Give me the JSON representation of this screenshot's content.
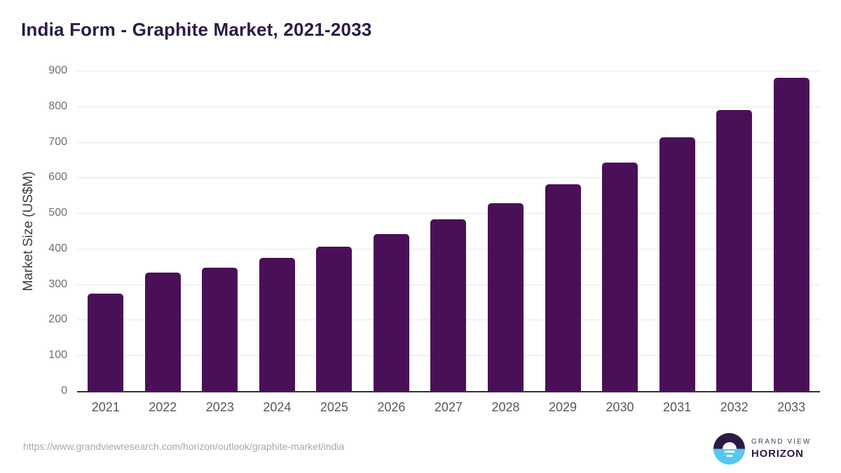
{
  "title": "India Form - Graphite Market, 2021-2033",
  "source_url": "https://www.grandviewresearch.com/horizon/outlook/graphite-market/india",
  "logo": {
    "line1": "GRAND VIEW",
    "line2": "HORIZON",
    "mark": "sunrise-horizon-circle-icon"
  },
  "colors": {
    "bar": "#4A1057",
    "title": "#2D1B45",
    "grid": "#E8E8E8",
    "axis": "#303034",
    "tick": "#6E6E6E",
    "url": "#A8A8A8",
    "logo_top": "#2D1B45",
    "logo_bottom": "#57C7F2"
  },
  "chart_data": {
    "type": "bar",
    "title": "India Form - Graphite Market, 2021-2033",
    "categories": [
      "2021",
      "2022",
      "2023",
      "2024",
      "2025",
      "2026",
      "2027",
      "2028",
      "2029",
      "2030",
      "2031",
      "2032",
      "2033"
    ],
    "values": [
      273,
      333,
      347,
      374,
      405,
      441,
      483,
      527,
      581,
      642,
      712,
      790,
      881
    ],
    "xlabel": "",
    "ylabel": "Market Size (US$M)",
    "ylim": [
      0,
      900
    ],
    "yticks": [
      0,
      100,
      200,
      300,
      400,
      500,
      600,
      700,
      800,
      900
    ],
    "grid": true,
    "legend": false,
    "bar_color": "#4A1057"
  }
}
